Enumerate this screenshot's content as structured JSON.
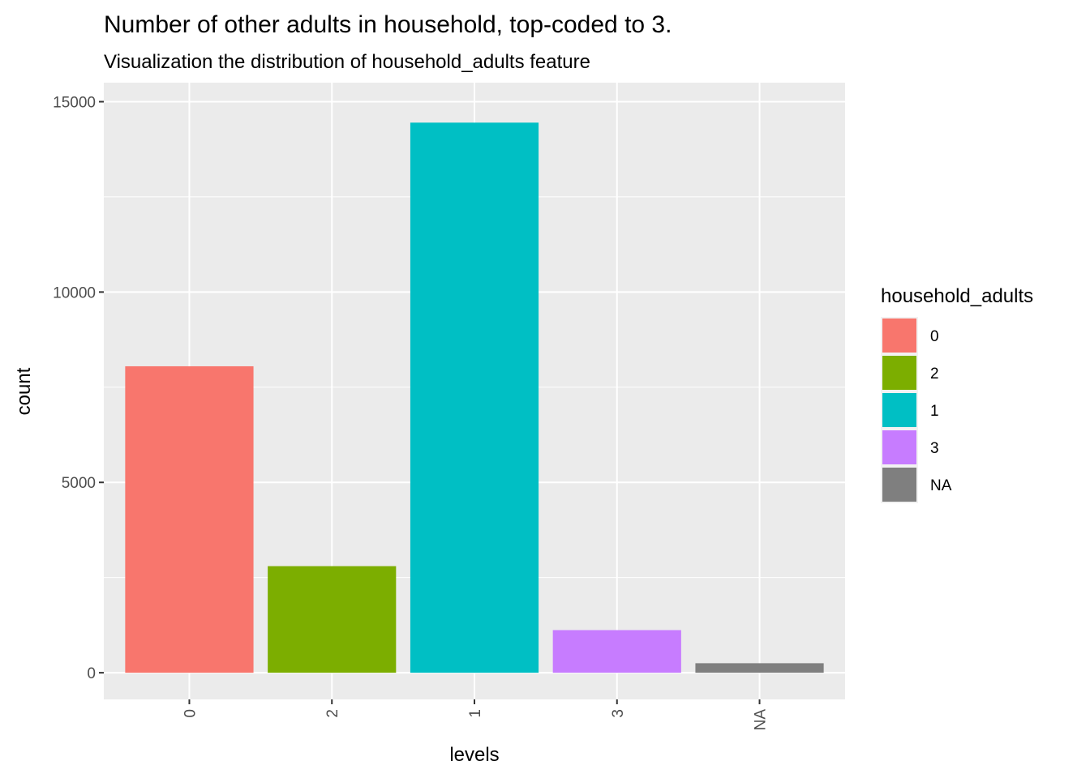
{
  "chart_data": {
    "type": "bar",
    "title": "Number of other adults in household, top-coded to 3.",
    "subtitle": "Visualization the distribution of household_adults feature",
    "xlabel": "levels",
    "ylabel": "count",
    "categories": [
      "0",
      "2",
      "1",
      "3",
      "NA"
    ],
    "values": [
      8050,
      2800,
      14450,
      1120,
      250
    ],
    "colors": [
      "#F8766D",
      "#7CAE00",
      "#00BFC4",
      "#C77CFF",
      "#7F7F7F"
    ],
    "ylim": [
      -700,
      15500
    ],
    "y_ticks": [
      0,
      5000,
      10000,
      15000
    ],
    "y_tick_labels": [
      "0",
      "5000",
      "10000",
      "15000"
    ],
    "grid": true,
    "legend": {
      "title": "household_adults",
      "position": "right",
      "items": [
        {
          "label": "0",
          "color": "#F8766D"
        },
        {
          "label": "2",
          "color": "#7CAE00"
        },
        {
          "label": "1",
          "color": "#00BFC4"
        },
        {
          "label": "3",
          "color": "#C77CFF"
        },
        {
          "label": "NA",
          "color": "#7F7F7F"
        }
      ]
    }
  }
}
